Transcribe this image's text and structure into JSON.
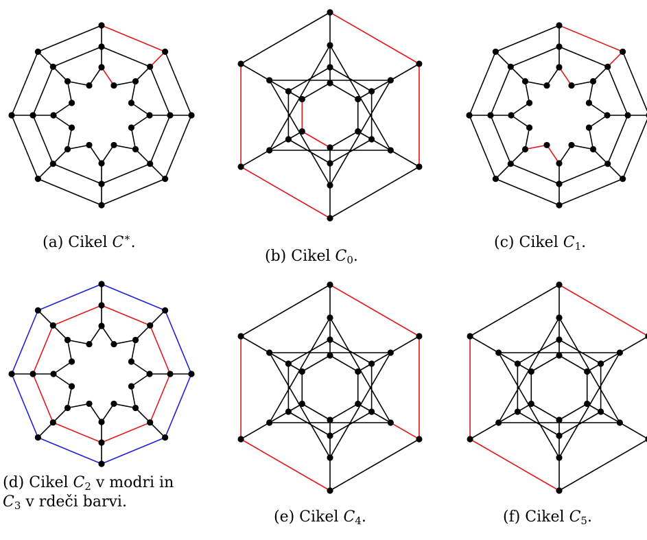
{
  "colors": {
    "default_edge": "#000000",
    "red_edge": "#e0191b",
    "blue_edge": "#1f1fd6",
    "node": "#000000"
  },
  "panels": [
    {
      "id": "a",
      "graph": "octagon",
      "caption": {
        "prefix": "(a) Cikel ",
        "sym": "C",
        "sup": "∗",
        "sub": "",
        "suffix": "."
      },
      "red_edges": [
        [
          0,
          1
        ],
        [
          1,
          9
        ],
        [
          9,
          17
        ],
        [
          17,
          16
        ],
        [
          16,
          24
        ],
        [
          24,
          31
        ]
      ],
      "blue_edges": []
    },
    {
      "id": "b",
      "graph": "hexagon",
      "caption": {
        "prefix": "(b) Cikel ",
        "sym": "C",
        "sup": "",
        "sub": "0",
        "suffix": "."
      },
      "red_edges": [
        [
          0,
          1
        ],
        [
          1,
          2
        ],
        [
          0,
          3
        ],
        [
          3,
          4
        ],
        [
          4,
          5
        ],
        [
          5,
          9
        ],
        [
          9,
          15
        ],
        [
          15,
          16
        ],
        [
          16,
          17
        ],
        [
          17,
          18
        ],
        [
          18,
          13
        ],
        [
          13,
          2
        ]
      ],
      "blue_edges": []
    },
    {
      "id": "c",
      "graph": "octagon",
      "caption": {
        "prefix": "(c) Cikel ",
        "sym": "C",
        "sup": "",
        "sub": "1",
        "suffix": "."
      },
      "red_edges": [
        [
          0,
          1
        ],
        [
          1,
          9
        ],
        [
          9,
          17
        ],
        [
          17,
          16
        ],
        [
          16,
          24
        ],
        [
          24,
          25
        ],
        [
          25,
          26
        ]
      ],
      "blue_edges": []
    },
    {
      "id": "d",
      "graph": "octagon",
      "caption": {
        "prefix": "(d) Cikel ",
        "sym": "C",
        "sup": "",
        "sub": "2",
        "suffix": " v modri in",
        "line2_sym": "C",
        "line2_sub": "3",
        "line2_suffix": " v rdeči barvi."
      },
      "red_edges": [
        [
          8,
          9
        ],
        [
          9,
          10
        ],
        [
          10,
          11
        ],
        [
          11,
          12
        ],
        [
          12,
          13
        ],
        [
          13,
          14
        ],
        [
          14,
          15
        ],
        [
          15,
          8
        ]
      ],
      "blue_edges": [
        [
          0,
          1
        ],
        [
          1,
          2
        ],
        [
          2,
          3
        ],
        [
          3,
          4
        ],
        [
          4,
          5
        ],
        [
          5,
          6
        ],
        [
          6,
          7
        ],
        [
          7,
          0
        ]
      ]
    },
    {
      "id": "e",
      "graph": "hexagon",
      "caption": {
        "prefix": "(e) Cikel ",
        "sym": "C",
        "sup": "",
        "sub": "4",
        "suffix": "."
      },
      "red_edges": [
        [
          0,
          1
        ],
        [
          1,
          2
        ],
        [
          0,
          3
        ],
        [
          3,
          4
        ],
        [
          4,
          5
        ],
        [
          5,
          6
        ],
        [
          6,
          7
        ],
        [
          7,
          8
        ],
        [
          8,
          2
        ]
      ],
      "blue_edges": []
    },
    {
      "id": "f",
      "graph": "hexagon",
      "caption": {
        "prefix": "(f) Cikel ",
        "sym": "C",
        "sup": "",
        "sub": "5",
        "suffix": "."
      },
      "red_edges": [
        [
          0,
          1
        ],
        [
          0,
          3
        ],
        [
          3,
          4
        ],
        [
          4,
          5
        ],
        [
          5,
          6
        ],
        [
          6,
          7
        ],
        [
          7,
          8
        ],
        [
          8,
          9
        ],
        [
          9,
          10
        ],
        [
          10,
          11
        ]
      ],
      "blue_edges": []
    }
  ]
}
